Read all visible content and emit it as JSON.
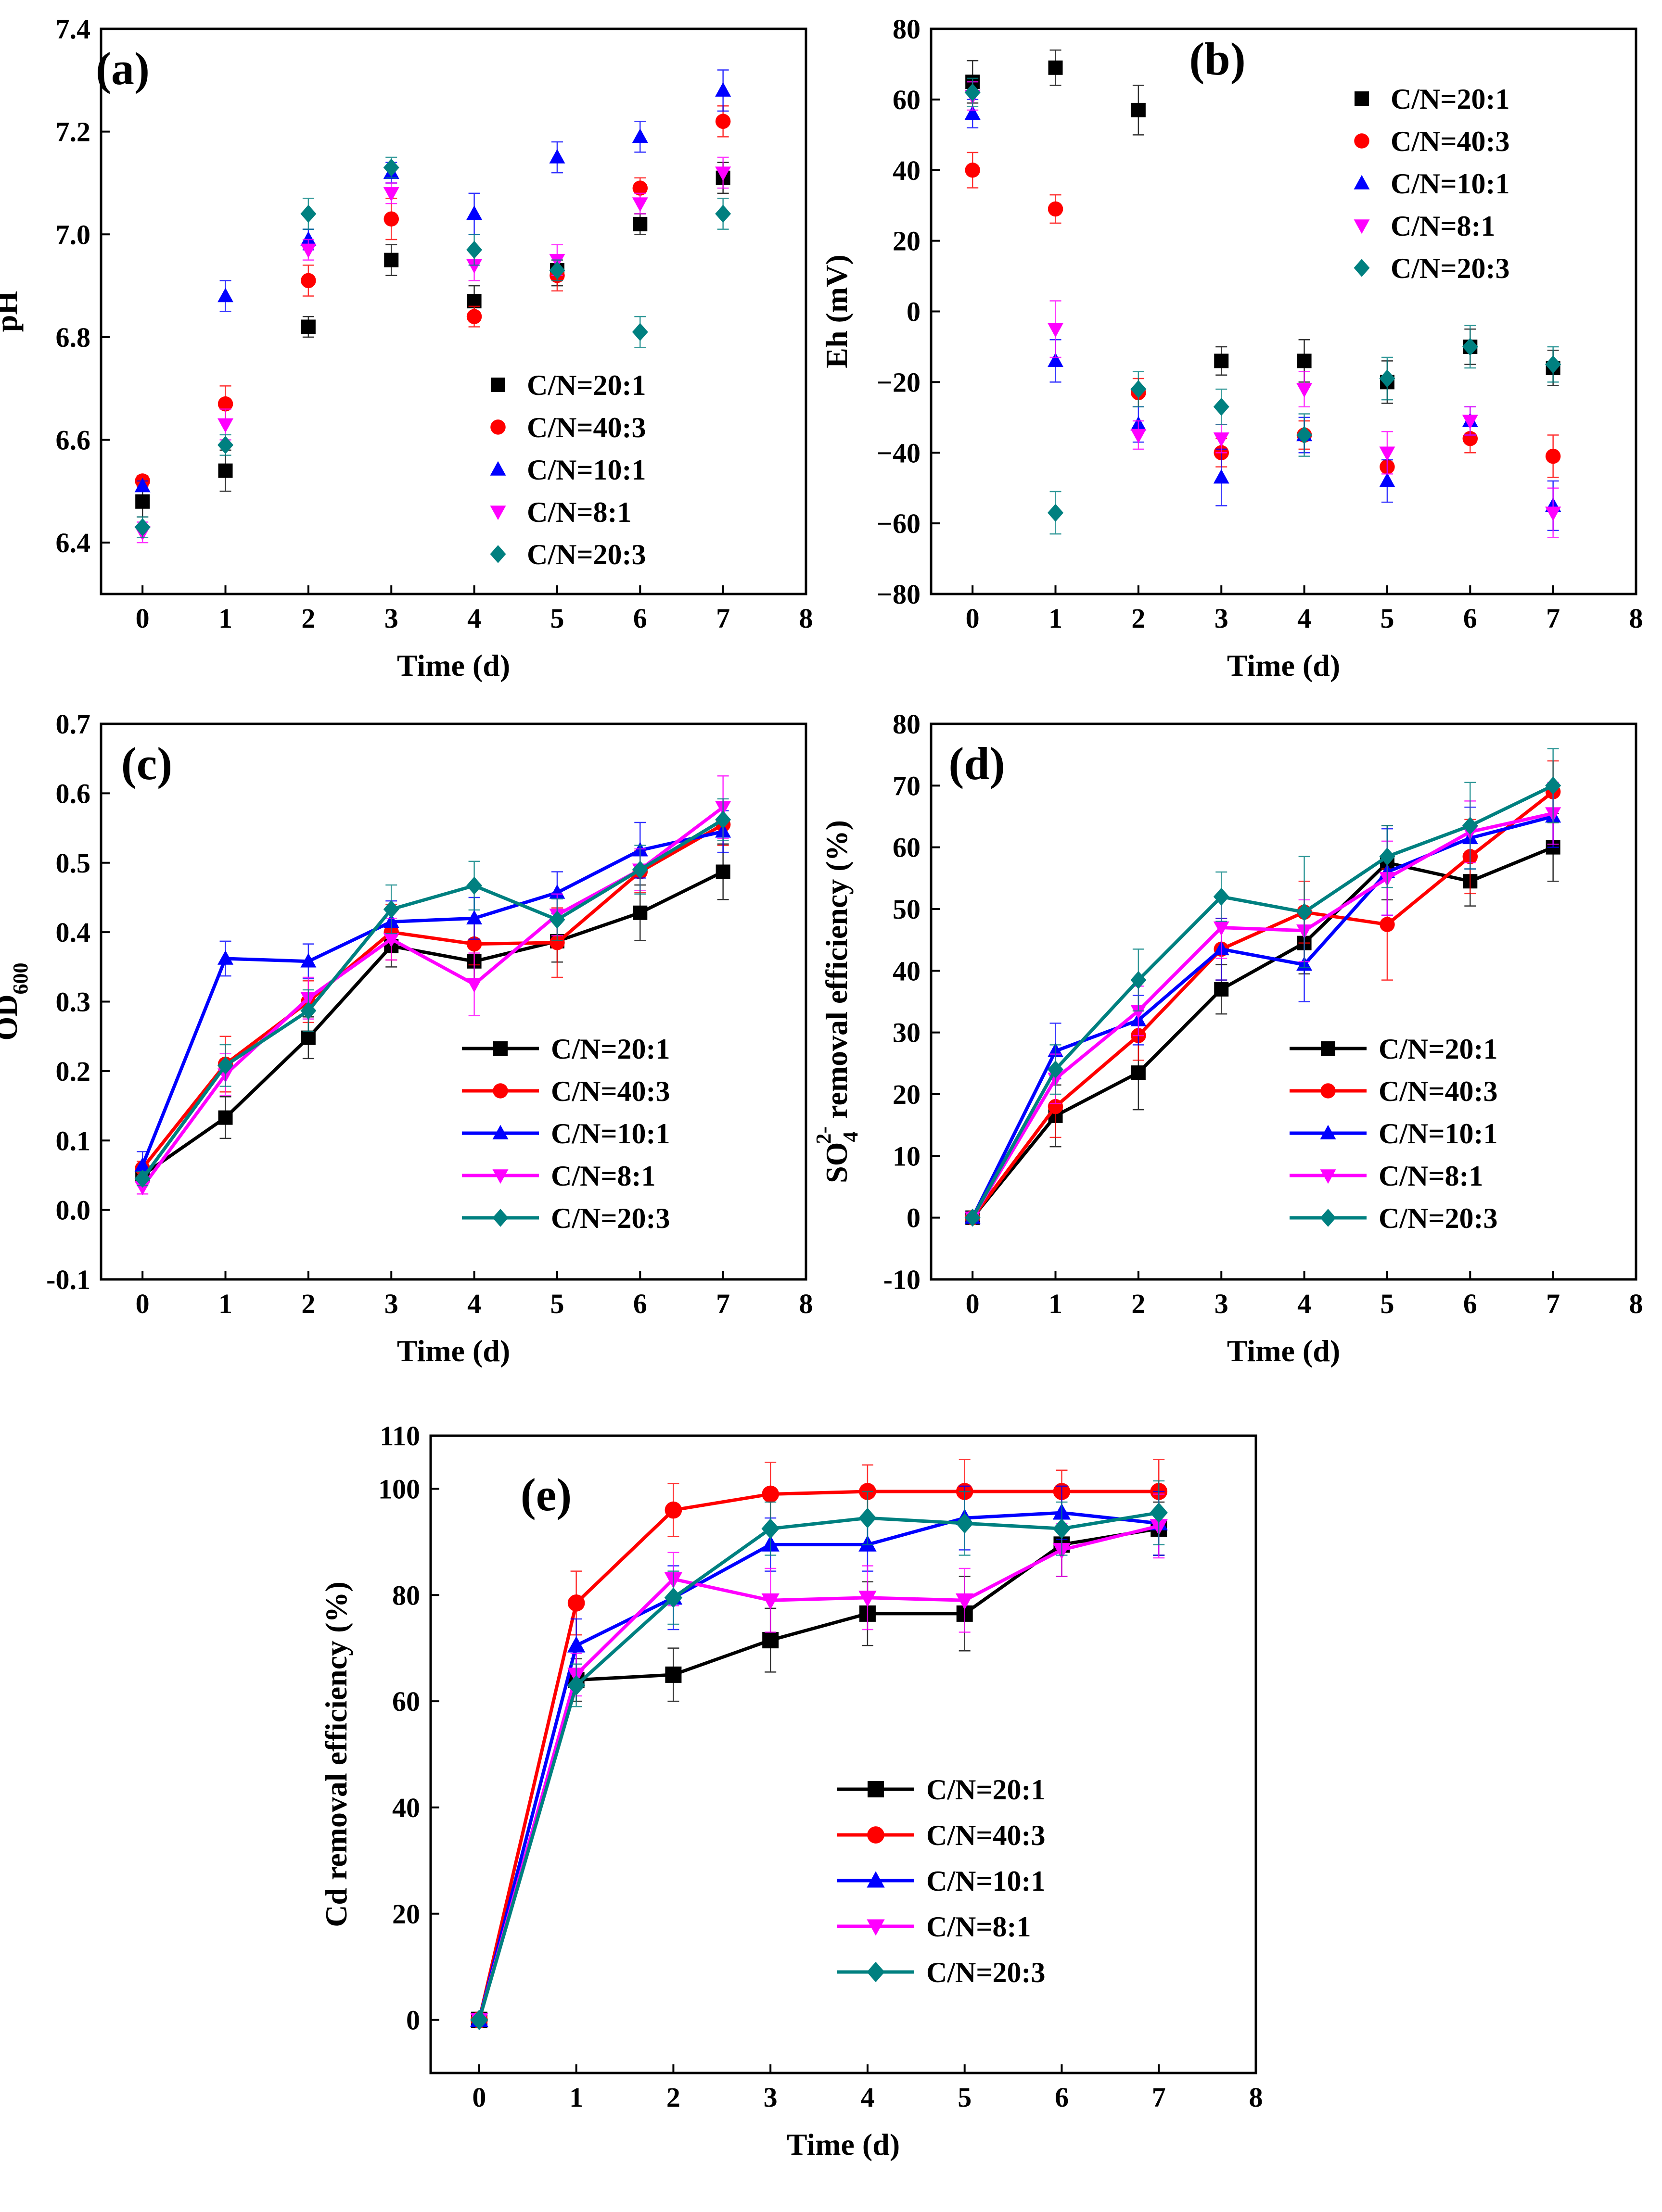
{
  "figure": {
    "background": "#ffffff"
  },
  "series_styles": [
    {
      "name": "C/N=20:1",
      "color": "#000000",
      "marker": "square"
    },
    {
      "name": "C/N=40:3",
      "color": "#ff0000",
      "marker": "circle"
    },
    {
      "name": "C/N=10:1",
      "color": "#0000ff",
      "marker": "triangle-up"
    },
    {
      "name": "C/N=8:1",
      "color": "#ff00ff",
      "marker": "triangle-down"
    },
    {
      "name": "C/N=20:3",
      "color": "#008080",
      "marker": "diamond"
    }
  ],
  "chart_data": [
    {
      "id": "a",
      "panel_label": "(a)",
      "type": "scatter",
      "xlabel": "Time (d)",
      "ylabel": "pH",
      "xlim": [
        -0.5,
        8
      ],
      "ylim": [
        6.3,
        7.4
      ],
      "xticks": [
        0,
        1,
        2,
        3,
        4,
        5,
        6,
        7,
        8
      ],
      "xtick_labels": [
        "0",
        "1",
        "2",
        "3",
        "4",
        "5",
        "6",
        "7",
        "8"
      ],
      "yticks": [
        6.4,
        6.6,
        6.8,
        7.0,
        7.2,
        7.4
      ],
      "ytick_labels": [
        "6.4",
        "6.6",
        "6.8",
        "7.0",
        "7.2",
        "7.4"
      ],
      "legend_position": "center-right",
      "x": [
        0,
        1,
        2,
        3,
        4,
        5,
        6,
        7
      ],
      "series": [
        {
          "name": "C/N=20:1",
          "values": [
            6.48,
            6.54,
            6.82,
            6.95,
            6.87,
            6.93,
            7.02,
            7.11
          ],
          "errors": [
            0.03,
            0.04,
            0.02,
            0.03,
            0.03,
            0.03,
            0.02,
            0.03
          ]
        },
        {
          "name": "C/N=40:3",
          "values": [
            6.52,
            6.67,
            6.91,
            7.03,
            6.84,
            6.92,
            7.09,
            7.22
          ],
          "errors": [
            0.01,
            0.035,
            0.03,
            0.04,
            0.02,
            0.03,
            0.02,
            0.03
          ]
        },
        {
          "name": "C/N=10:1",
          "values": [
            6.51,
            6.88,
            6.99,
            7.12,
            7.04,
            7.15,
            7.19,
            7.28
          ],
          "errors": [
            0.01,
            0.03,
            0.02,
            0.02,
            0.04,
            0.03,
            0.03,
            0.04
          ]
        },
        {
          "name": "C/N=8:1",
          "values": [
            6.42,
            6.63,
            6.97,
            7.08,
            6.94,
            6.95,
            7.06,
            7.12
          ],
          "errors": [
            0.02,
            0.03,
            0.02,
            0.02,
            0.03,
            0.03,
            0.02,
            0.03
          ]
        },
        {
          "name": "C/N=20:3",
          "values": [
            6.43,
            6.59,
            7.04,
            7.13,
            6.97,
            6.93,
            6.81,
            7.04
          ],
          "errors": [
            0.02,
            0.02,
            0.03,
            0.02,
            0.03,
            0.02,
            0.03,
            0.03
          ]
        }
      ]
    },
    {
      "id": "b",
      "panel_label": "(b)",
      "type": "scatter",
      "xlabel": "Time (d)",
      "ylabel": "Eh (mV)",
      "xlim": [
        -0.5,
        8
      ],
      "ylim": [
        -80,
        80
      ],
      "xticks": [
        0,
        1,
        2,
        3,
        4,
        5,
        6,
        7,
        8
      ],
      "xtick_labels": [
        "0",
        "1",
        "2",
        "3",
        "4",
        "5",
        "6",
        "7",
        "8"
      ],
      "yticks": [
        -80,
        -60,
        -40,
        -20,
        0,
        20,
        40,
        60,
        80
      ],
      "ytick_labels": [
        "−80",
        "−60",
        "−40",
        "−20",
        "0",
        "20",
        "40",
        "60",
        "80"
      ],
      "legend_position": "top-right",
      "x": [
        0,
        1,
        2,
        3,
        4,
        5,
        6,
        7
      ],
      "series": [
        {
          "name": "C/N=20:1",
          "values": [
            65,
            69,
            57,
            -14,
            -14,
            -20,
            -10,
            -16
          ],
          "errors": [
            6,
            5,
            7,
            4,
            6,
            6,
            5,
            5
          ]
        },
        {
          "name": "C/N=40:3",
          "values": [
            40,
            29,
            -23,
            -40,
            -35,
            -44,
            -36,
            -41
          ],
          "errors": [
            5,
            4,
            4,
            4,
            4,
            5,
            4,
            6
          ]
        },
        {
          "name": "C/N=10:1",
          "values": [
            56,
            -14,
            -32,
            -47,
            -35,
            -48,
            -31,
            -55
          ],
          "errors": [
            4,
            6,
            5,
            8,
            5,
            6,
            4,
            7
          ]
        },
        {
          "name": "C/N=8:1",
          "values": [
            61,
            -5,
            -35,
            -36,
            -22,
            -40,
            -31,
            -57
          ],
          "errors": [
            4,
            8,
            4,
            4,
            5,
            6,
            4,
            7
          ]
        },
        {
          "name": "C/N=20:3",
          "values": [
            62,
            -57,
            -22,
            -27,
            -35,
            -19,
            -10,
            -15
          ],
          "errors": [
            4,
            6,
            5,
            5,
            6,
            6,
            6,
            5
          ]
        }
      ]
    },
    {
      "id": "c",
      "panel_label": "(c)",
      "type": "line",
      "xlabel": "Time (d)",
      "ylabel": "OD",
      "ylabel_subscript": "600",
      "xlim": [
        -0.5,
        8
      ],
      "ylim": [
        -0.1,
        0.7
      ],
      "xticks": [
        0,
        1,
        2,
        3,
        4,
        5,
        6,
        7,
        8
      ],
      "xtick_labels": [
        "0",
        "1",
        "2",
        "3",
        "4",
        "5",
        "6",
        "7",
        "8"
      ],
      "yticks": [
        -0.1,
        0.0,
        0.1,
        0.2,
        0.3,
        0.4,
        0.5,
        0.6,
        0.7
      ],
      "ytick_labels": [
        "-0.1",
        "0.0",
        "0.1",
        "0.2",
        "0.3",
        "0.4",
        "0.5",
        "0.6",
        "0.7"
      ],
      "legend_position": "center-right",
      "x": [
        0,
        1,
        2,
        3,
        4,
        5,
        6,
        7
      ],
      "series": [
        {
          "name": "C/N=20:1",
          "values": [
            0.05,
            0.133,
            0.248,
            0.38,
            0.358,
            0.387,
            0.428,
            0.487
          ],
          "errors": [
            0.01,
            0.03,
            0.03,
            0.03,
            0.03,
            0.03,
            0.04,
            0.04
          ]
        },
        {
          "name": "C/N=40:3",
          "values": [
            0.06,
            0.21,
            0.3,
            0.4,
            0.383,
            0.385,
            0.487,
            0.555
          ],
          "errors": [
            0.01,
            0.04,
            0.03,
            0.04,
            0.03,
            0.05,
            0.03,
            0.03
          ]
        },
        {
          "name": "C/N=10:1",
          "values": [
            0.064,
            0.362,
            0.358,
            0.415,
            0.42,
            0.457,
            0.518,
            0.545
          ],
          "errors": [
            0.02,
            0.025,
            0.025,
            0.03,
            0.03,
            0.03,
            0.04,
            0.03
          ]
        },
        {
          "name": "C/N=8:1",
          "values": [
            0.033,
            0.195,
            0.305,
            0.39,
            0.325,
            0.425,
            0.49,
            0.58
          ],
          "errors": [
            0.01,
            0.03,
            0.03,
            0.03,
            0.045,
            0.03,
            0.03,
            0.045
          ]
        },
        {
          "name": "C/N=20:3",
          "values": [
            0.045,
            0.208,
            0.287,
            0.433,
            0.467,
            0.418,
            0.49,
            0.562
          ],
          "errors": [
            0.01,
            0.03,
            0.03,
            0.035,
            0.035,
            0.03,
            0.035,
            0.03
          ]
        }
      ]
    },
    {
      "id": "d",
      "panel_label": "(d)",
      "type": "line",
      "xlabel": "Time (d)",
      "ylabel_parts": [
        "SO",
        "4",
        "2-",
        " removal efficiency (%)"
      ],
      "xlim": [
        -0.5,
        8
      ],
      "ylim": [
        -10,
        80
      ],
      "xticks": [
        0,
        1,
        2,
        3,
        4,
        5,
        6,
        7,
        8
      ],
      "xtick_labels": [
        "0",
        "1",
        "2",
        "3",
        "4",
        "5",
        "6",
        "7",
        "8"
      ],
      "yticks": [
        -10,
        0,
        10,
        20,
        30,
        40,
        50,
        60,
        70,
        80
      ],
      "ytick_labels": [
        "-10",
        "0",
        "10",
        "20",
        "30",
        "40",
        "50",
        "60",
        "70",
        "80"
      ],
      "legend_position": "bottom-right",
      "x": [
        0,
        1,
        2,
        3,
        4,
        5,
        6,
        7
      ],
      "series": [
        {
          "name": "C/N=20:1",
          "values": [
            0,
            16.5,
            23.5,
            37,
            44.5,
            57.5,
            54.5,
            60
          ],
          "errors": [
            0.5,
            5,
            6,
            4,
            5,
            6,
            4,
            5.5
          ]
        },
        {
          "name": "C/N=40:3",
          "values": [
            0,
            18,
            29.5,
            43.5,
            49.5,
            47.5,
            58.5,
            69
          ],
          "errors": [
            0.5,
            5,
            4,
            5,
            5,
            9,
            6,
            5
          ]
        },
        {
          "name": "C/N=10:1",
          "values": [
            0,
            27,
            32,
            43.5,
            41,
            56,
            61.5,
            65
          ],
          "errors": [
            0.5,
            4.5,
            4,
            5,
            6,
            7,
            5,
            5
          ]
        },
        {
          "name": "C/N=8:1",
          "values": [
            0,
            22.5,
            33.5,
            47,
            46.5,
            55,
            62.5,
            65.5
          ],
          "errors": [
            0.5,
            4,
            4,
            5,
            5,
            6,
            5,
            5
          ]
        },
        {
          "name": "C/N=20:3",
          "values": [
            0,
            24,
            38.5,
            52,
            49.5,
            58.5,
            63.5,
            70
          ],
          "errors": [
            0.5,
            4,
            5,
            4,
            9,
            5,
            7,
            6
          ]
        }
      ]
    },
    {
      "id": "e",
      "panel_label": "(e)",
      "type": "line",
      "xlabel": "Time (d)",
      "ylabel": "Cd removal efficiency (%)",
      "xlim": [
        -0.5,
        8
      ],
      "ylim": [
        -10,
        110
      ],
      "xticks": [
        0,
        1,
        2,
        3,
        4,
        5,
        6,
        7,
        8
      ],
      "xtick_labels": [
        "0",
        "1",
        "2",
        "3",
        "4",
        "5",
        "6",
        "7",
        "8"
      ],
      "yticks": [
        0,
        20,
        40,
        60,
        80,
        100,
        110
      ],
      "ytick_labels": [
        "0",
        "20",
        "40",
        "60",
        "80",
        "100",
        "110"
      ],
      "legend_position": "bottom-right",
      "x": [
        0,
        1,
        2,
        3,
        4,
        5,
        6,
        7
      ],
      "series": [
        {
          "name": "C/N=20:1",
          "values": [
            0,
            64,
            65,
            71.5,
            76.5,
            76.5,
            89.5,
            92.5
          ],
          "errors": [
            0.5,
            4,
            5,
            6,
            6,
            7,
            6,
            5
          ]
        },
        {
          "name": "C/N=40:3",
          "values": [
            0,
            78.5,
            96,
            99,
            99.5,
            99.5,
            99.5,
            99.5
          ],
          "errors": [
            0.5,
            6,
            5,
            6,
            5,
            6,
            4,
            6
          ]
        },
        {
          "name": "C/N=10:1",
          "values": [
            0,
            70.5,
            79.5,
            89.5,
            89.5,
            94.5,
            95.5,
            93.5
          ],
          "errors": [
            0.5,
            5,
            6,
            5,
            5,
            6,
            5,
            6
          ]
        },
        {
          "name": "C/N=8:1",
          "values": [
            0,
            65,
            83,
            79,
            79.5,
            79,
            88.5,
            93
          ],
          "errors": [
            0.5,
            4,
            5,
            6,
            6,
            6,
            5,
            6
          ]
        },
        {
          "name": "C/N=20:3",
          "values": [
            0,
            63,
            79.5,
            92.5,
            94.5,
            93.5,
            92.5,
            95.5
          ],
          "errors": [
            0.5,
            4,
            5,
            5,
            5,
            6,
            5,
            6
          ]
        }
      ]
    }
  ]
}
